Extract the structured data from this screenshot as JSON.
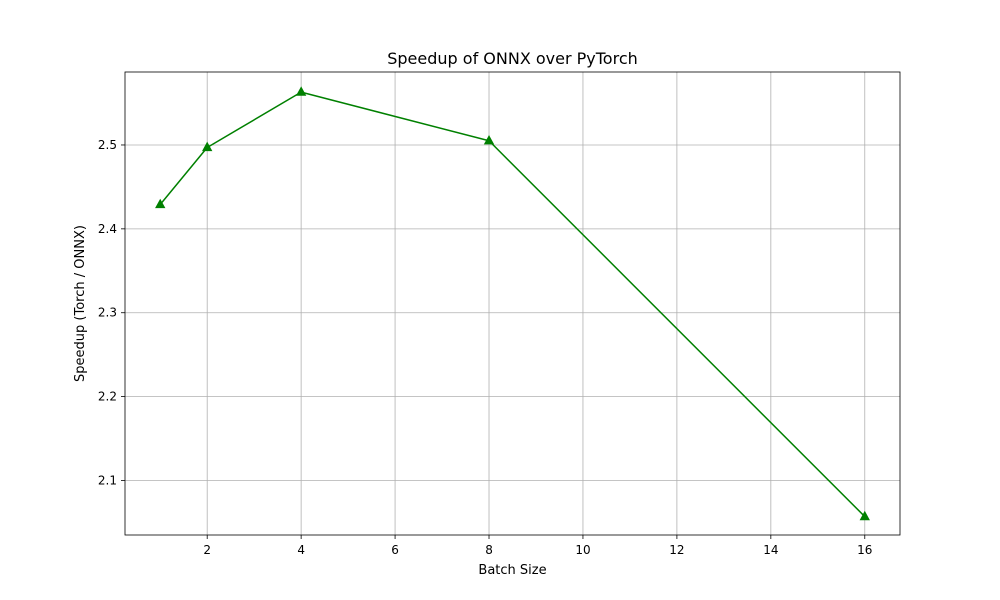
{
  "chart_data": {
    "type": "line",
    "title": "Speedup of ONNX over PyTorch",
    "xlabel": "Batch Size",
    "ylabel": "Speedup (Torch / ONNX)",
    "xlim": [
      0.25,
      16.75
    ],
    "ylim": [
      2.035,
      2.587
    ],
    "xticks": [
      2,
      4,
      6,
      8,
      10,
      12,
      14,
      16
    ],
    "yticks": [
      2.1,
      2.2,
      2.3,
      2.4,
      2.5
    ],
    "grid": true,
    "series": [
      {
        "x": [
          1,
          2,
          4,
          8,
          16
        ],
        "values": [
          2.429,
          2.497,
          2.563,
          2.505,
          2.057
        ],
        "color": "#008000",
        "marker": "triangle-up"
      }
    ]
  }
}
